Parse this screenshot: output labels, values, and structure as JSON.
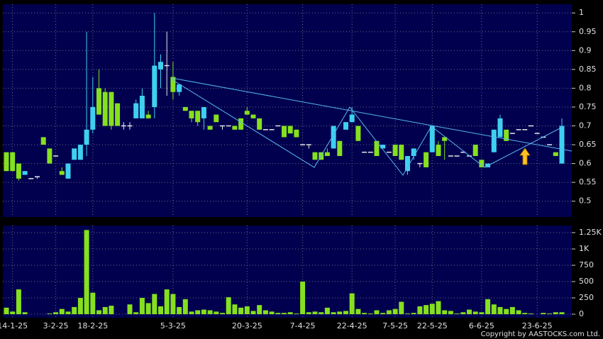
{
  "chart_data": [
    {
      "type": "candlestick",
      "open": [
        0.63,
        0.63,
        0.6,
        0.57,
        0.56,
        0.565,
        0.67,
        0.64,
        0.62,
        0.58,
        0.56,
        0.61,
        0.61,
        0.65,
        0.69,
        0.8,
        0.79,
        0.79,
        0.76,
        0.7,
        0.7,
        0.72,
        0.72,
        0.73,
        0.75,
        0.85,
        0.86,
        0.83,
        0.79,
        0.75,
        0.74,
        0.74,
        0.72,
        0.7,
        0.73,
        0.7,
        0.7,
        0.7,
        0.72,
        0.74,
        0.73,
        0.72,
        0.69,
        0.69,
        0.7,
        0.7,
        0.7,
        0.69,
        0.65,
        0.65,
        0.63,
        0.63,
        0.63,
        0.64,
        0.66,
        0.69,
        0.71,
        0.7,
        0.63,
        0.63,
        0.66,
        0.64,
        0.63,
        0.65,
        0.65,
        0.58,
        0.62,
        0.6,
        0.63,
        0.63,
        0.65,
        0.67,
        0.62,
        0.62,
        0.63,
        0.62,
        0.65,
        0.61,
        0.59,
        0.63,
        0.67,
        0.69,
        0.68,
        0.69,
        0.69,
        0.7,
        0.68,
        0.67,
        0.65,
        0.63,
        0.6
      ],
      "high": [
        0.63,
        0.63,
        0.6,
        0.58,
        0.56,
        0.565,
        0.67,
        0.64,
        0.62,
        0.59,
        0.6,
        0.64,
        0.65,
        0.95,
        0.83,
        0.85,
        0.8,
        0.79,
        0.76,
        0.71,
        0.71,
        0.77,
        0.8,
        0.74,
        1.0,
        0.89,
        0.95,
        0.87,
        0.81,
        0.75,
        0.74,
        0.74,
        0.75,
        0.7,
        0.73,
        0.7,
        0.7,
        0.7,
        0.72,
        0.75,
        0.73,
        0.72,
        0.69,
        0.69,
        0.7,
        0.7,
        0.7,
        0.69,
        0.65,
        0.65,
        0.63,
        0.63,
        0.64,
        0.7,
        0.66,
        0.71,
        0.75,
        0.7,
        0.63,
        0.63,
        0.66,
        0.65,
        0.63,
        0.65,
        0.65,
        0.62,
        0.64,
        0.6,
        0.63,
        0.7,
        0.66,
        0.67,
        0.62,
        0.62,
        0.63,
        0.62,
        0.65,
        0.61,
        0.6,
        0.69,
        0.73,
        0.69,
        0.68,
        0.69,
        0.69,
        0.7,
        0.68,
        0.67,
        0.65,
        0.63,
        0.72
      ],
      "low": [
        0.58,
        0.58,
        0.555,
        0.57,
        0.56,
        0.56,
        0.65,
        0.6,
        0.62,
        0.57,
        0.56,
        0.61,
        0.61,
        0.62,
        0.68,
        0.73,
        0.7,
        0.69,
        0.7,
        0.69,
        0.69,
        0.72,
        0.72,
        0.72,
        0.72,
        0.8,
        0.78,
        0.77,
        0.78,
        0.74,
        0.71,
        0.7,
        0.69,
        0.69,
        0.71,
        0.69,
        0.7,
        0.69,
        0.69,
        0.73,
        0.72,
        0.69,
        0.69,
        0.69,
        0.7,
        0.67,
        0.68,
        0.67,
        0.65,
        0.64,
        0.61,
        0.61,
        0.62,
        0.64,
        0.62,
        0.69,
        0.71,
        0.66,
        0.63,
        0.63,
        0.62,
        0.64,
        0.63,
        0.62,
        0.61,
        0.57,
        0.61,
        0.59,
        0.59,
        0.63,
        0.62,
        0.61,
        0.62,
        0.62,
        0.63,
        0.62,
        0.62,
        0.59,
        0.59,
        0.63,
        0.67,
        0.66,
        0.68,
        0.69,
        0.69,
        0.7,
        0.68,
        0.67,
        0.65,
        0.62,
        0.6
      ],
      "close": [
        0.58,
        0.58,
        0.56,
        0.58,
        0.56,
        0.565,
        0.65,
        0.6,
        0.62,
        0.57,
        0.6,
        0.64,
        0.65,
        0.69,
        0.75,
        0.73,
        0.7,
        0.7,
        0.7,
        0.7,
        0.7,
        0.76,
        0.78,
        0.72,
        0.86,
        0.87,
        0.86,
        0.79,
        0.81,
        0.74,
        0.72,
        0.71,
        0.75,
        0.69,
        0.71,
        0.7,
        0.7,
        0.69,
        0.69,
        0.73,
        0.72,
        0.69,
        0.69,
        0.69,
        0.7,
        0.67,
        0.68,
        0.67,
        0.65,
        0.65,
        0.61,
        0.61,
        0.62,
        0.7,
        0.62,
        0.71,
        0.73,
        0.66,
        0.63,
        0.63,
        0.62,
        0.65,
        0.63,
        0.62,
        0.61,
        0.62,
        0.64,
        0.6,
        0.59,
        0.7,
        0.62,
        0.66,
        0.62,
        0.62,
        0.63,
        0.62,
        0.62,
        0.59,
        0.6,
        0.69,
        0.72,
        0.66,
        0.68,
        0.69,
        0.69,
        0.7,
        0.68,
        0.67,
        0.65,
        0.62,
        0.7
      ],
      "up_color": "#3fd0f0",
      "down_color": "#86e01e",
      "flat_color": "#e8e8e8",
      "ylim": [
        0.458,
        1.023
      ],
      "yticks": [
        1,
        0.95,
        0.9,
        0.85,
        0.8,
        0.75,
        0.7,
        0.65,
        0.6,
        0.55,
        0.5
      ],
      "grid": true
    },
    {
      "type": "bar",
      "categories": [
        null,
        "14-1-25",
        null,
        null,
        null,
        null,
        null,
        null,
        "3-2-25",
        null,
        null,
        null,
        null,
        null,
        "18-2-25",
        null,
        null,
        null,
        null,
        null,
        null,
        null,
        null,
        null,
        null,
        null,
        null,
        "5-3-25",
        null,
        null,
        null,
        null,
        null,
        null,
        null,
        null,
        null,
        null,
        null,
        "20-3-25",
        null,
        null,
        null,
        null,
        null,
        null,
        null,
        null,
        "7-4-25",
        null,
        null,
        null,
        null,
        null,
        null,
        null,
        "22-4-25",
        null,
        null,
        null,
        null,
        null,
        null,
        "7-5-25",
        null,
        null,
        null,
        null,
        null,
        "22-5-25",
        null,
        null,
        null,
        null,
        null,
        null,
        null,
        "6-6-25",
        null,
        null,
        null,
        null,
        null,
        null,
        null,
        null,
        "23-6-25",
        null,
        null,
        null,
        null
      ],
      "values": [
        100,
        40,
        380,
        30,
        0,
        0,
        0,
        10,
        30,
        80,
        40,
        110,
        250,
        1290,
        330,
        60,
        110,
        130,
        0,
        0,
        150,
        30,
        250,
        170,
        310,
        120,
        380,
        310,
        110,
        230,
        40,
        60,
        70,
        60,
        40,
        20,
        260,
        150,
        100,
        120,
        50,
        140,
        60,
        40,
        20,
        20,
        30,
        10,
        500,
        30,
        40,
        30,
        100,
        30,
        40,
        50,
        320,
        80,
        20,
        10,
        60,
        20,
        60,
        80,
        190,
        10,
        20,
        120,
        140,
        160,
        200,
        60,
        50,
        10,
        30,
        70,
        40,
        30,
        230,
        150,
        110,
        80,
        110,
        60,
        20,
        10,
        0,
        20,
        10,
        30,
        30
      ],
      "color": "#86e01e",
      "ylim": [
        -54,
        1359
      ],
      "yticks": [
        {
          "value": 1250,
          "label": "1.25K"
        },
        {
          "value": 1000,
          "label": "1K"
        },
        750,
        500,
        250,
        0
      ],
      "grid": true
    }
  ],
  "footer": "Copyright by AASTOCKS.com Ltd."
}
